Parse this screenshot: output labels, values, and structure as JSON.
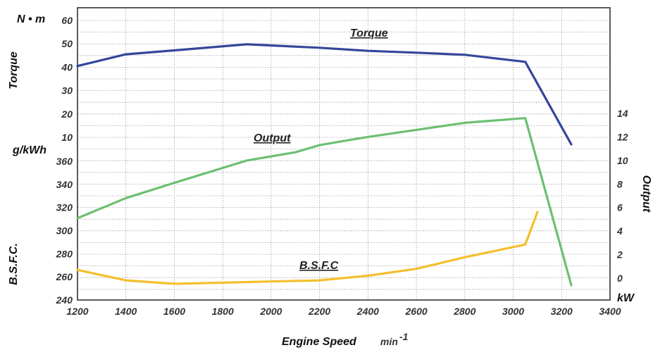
{
  "chart_data": {
    "type": "line",
    "title": "",
    "xlabel": "Engine Speed",
    "xlabel_unit": "min",
    "xlabel_unit_sup": "-1",
    "x_range": [
      1200,
      3400
    ],
    "x_ticks": [
      "1200",
      "1400",
      "1600",
      "1800",
      "2000",
      "2200",
      "2400",
      "2600",
      "2800",
      "3000",
      "3200",
      "3400"
    ],
    "grid": true,
    "axes": {
      "torque": {
        "label": "Torque",
        "unit": "N • m",
        "range": [
          0,
          60
        ],
        "ticks": [
          "60",
          "50",
          "40",
          "30",
          "20",
          "10"
        ]
      },
      "bsfc": {
        "label": "B.S.F.C.",
        "unit": "g/kWh",
        "range": [
          240,
          360
        ],
        "ticks": [
          "360",
          "340",
          "320",
          "300",
          "280",
          "260",
          "240"
        ]
      },
      "output": {
        "label": "Output",
        "unit": "kW",
        "range": [
          0,
          14
        ],
        "ticks": [
          "14",
          "12",
          "10",
          "8",
          "6",
          "4",
          "2",
          "0"
        ]
      }
    },
    "series": [
      {
        "name": "Torque",
        "axis": "torque",
        "color": "#34469a",
        "x": [
          1200,
          1400,
          1600,
          1900,
          2200,
          2400,
          2600,
          2800,
          3050,
          3240
        ],
        "y": [
          40.5,
          45.5,
          47.2,
          49.8,
          48.3,
          47.0,
          46.2,
          45.3,
          42.3,
          7.0
        ]
      },
      {
        "name": "Output",
        "axis": "output",
        "color": "#6cbf72",
        "x": [
          1200,
          1400,
          1600,
          1900,
          2100,
          2300,
          2500,
          2700,
          2800,
          3050,
          3240
        ],
        "y": [
          5.1,
          6.8,
          8.1,
          10.0,
          10.8,
          11.8,
          12.5,
          13.1,
          13.3,
          13.6,
          -0.6
        ],
        "x_ext": [
          1200,
          1400,
          1600,
          1900,
          2100,
          2200,
          2400,
          2600,
          2800,
          3050,
          3240
        ],
        "y_ext": [
          5.1,
          6.8,
          8.1,
          10.0,
          10.7,
          11.3,
          12.0,
          12.6,
          13.2,
          13.6,
          -0.6
        ]
      },
      {
        "name": "B.S.F.C",
        "axis": "bsfc",
        "color": "#f4bf2d",
        "x": [
          1200,
          1400,
          1600,
          1800,
          2000,
          2200,
          2400,
          2600,
          2800,
          3050,
          3100
        ],
        "y": [
          266,
          257,
          254,
          255,
          256,
          257,
          261,
          267,
          277,
          288,
          316
        ]
      }
    ]
  }
}
